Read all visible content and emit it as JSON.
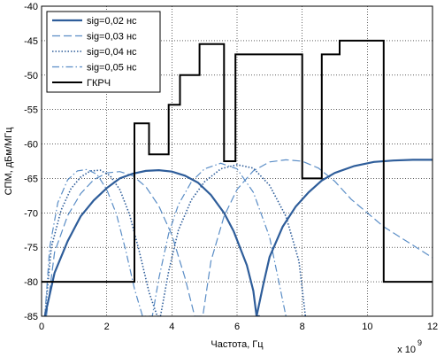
{
  "chart_data": {
    "type": "line",
    "xlabel": "Частота, Гц",
    "ylabel": "СПМ, дБм/МГц",
    "x_multiplier": "x 10",
    "x_multiplier_exp": "9",
    "xlim": [
      0,
      12
    ],
    "ylim": [
      -85,
      -40
    ],
    "x_ticks": [
      0,
      2,
      4,
      6,
      8,
      10,
      12
    ],
    "y_ticks": [
      -40,
      -45,
      -50,
      -55,
      -60,
      -65,
      -70,
      -75,
      -80,
      -85
    ],
    "grid": true,
    "legend_position": "top-left",
    "series": [
      {
        "name": "sig=0,02 нс",
        "style": "solid",
        "color": "#2e5d9a",
        "x": [
          0.1,
          0.4,
          0.8,
          1.2,
          1.6,
          2.0,
          2.4,
          2.8,
          3.2,
          3.6,
          4.0,
          4.4,
          4.8,
          5.2,
          5.6,
          5.9,
          6.3,
          6.5,
          6.6,
          6.7,
          6.6,
          6.8,
          7.0,
          7.4,
          7.8,
          8.2,
          8.6,
          9.0,
          9.6,
          10.2,
          10.8,
          11.4,
          12.0
        ],
        "y": [
          -85,
          -78.7,
          -74.1,
          -70.5,
          -68.2,
          -66.4,
          -65.0,
          -64.3,
          -63.9,
          -63.8,
          -64.0,
          -64.6,
          -65.6,
          -67.4,
          -70.0,
          -72.7,
          -77.6,
          -81.3,
          -85,
          -85,
          -85,
          -80.5,
          -76.4,
          -72.0,
          -69.1,
          -67.0,
          -65.3,
          -64.2,
          -63.2,
          -62.6,
          -62.4,
          -62.3,
          -62.3
        ]
      },
      {
        "name": "sig=0,03 нс",
        "style": "dashed",
        "color": "#5a8dc6",
        "x": [
          0.15,
          0.4,
          0.8,
          1.2,
          1.6,
          2.0,
          2.4,
          2.8,
          3.2,
          3.6,
          4.0,
          4.4,
          4.7,
          4.95,
          5.2,
          5.6,
          6.0,
          6.5,
          7.0,
          7.5,
          8.0,
          8.5,
          9.0,
          9.5,
          10.0,
          10.5,
          11.0,
          11.5,
          12.0
        ],
        "y": [
          -85,
          -75.7,
          -70.4,
          -67.2,
          -65.2,
          -64.2,
          -64.0,
          -64.6,
          -66.2,
          -69.0,
          -73.2,
          -79.4,
          -85,
          -85,
          -77.0,
          -70.5,
          -66.6,
          -63.9,
          -62.6,
          -62.3,
          -62.5,
          -63.5,
          -65.4,
          -68.0,
          -70.0,
          -72.0,
          -73.5,
          -75.0,
          -76.5
        ]
      },
      {
        "name": "sig=0,04 нс",
        "style": "dotted",
        "color": "#2e5d9a",
        "x": [
          0.1,
          0.3,
          0.6,
          0.9,
          1.2,
          1.5,
          1.8,
          2.1,
          2.4,
          2.7,
          3.0,
          3.3,
          3.55,
          3.65,
          3.9,
          4.2,
          4.6,
          5.0,
          5.5,
          6.0,
          6.5,
          7.0,
          7.5,
          7.9,
          8.1
        ],
        "y": [
          -85,
          -75.0,
          -69.6,
          -66.5,
          -64.8,
          -63.9,
          -63.8,
          -64.6,
          -66.6,
          -70.2,
          -75.6,
          -81.5,
          -85,
          -85,
          -78.5,
          -72.5,
          -68.1,
          -65.5,
          -63.6,
          -63.0,
          -63.5,
          -66.0,
          -70.5,
          -77.0,
          -85
        ]
      },
      {
        "name": "sig=0,05 нс",
        "style": "dashdot",
        "color": "#5a8dc6",
        "x": [
          0.1,
          0.25,
          0.5,
          0.8,
          1.1,
          1.4,
          1.7,
          2.0,
          2.3,
          2.6,
          2.85,
          3.1,
          3.3,
          3.4,
          3.6,
          3.9,
          4.2,
          4.6,
          5.0,
          5.5,
          6.0,
          6.5,
          7.0,
          7.5
        ],
        "y": [
          -85,
          -75.0,
          -68.5,
          -65.2,
          -63.9,
          -63.7,
          -64.4,
          -66.6,
          -70.2,
          -75.8,
          -81.0,
          -85,
          -85,
          -85,
          -79.5,
          -73.0,
          -68.8,
          -65.5,
          -63.6,
          -62.8,
          -63.6,
          -67.0,
          -73.5,
          -85
        ]
      },
      {
        "name": "ГКРЧ",
        "style": "step",
        "color": "#000000",
        "x": [
          0,
          2.85,
          2.85,
          3.3,
          3.3,
          3.9,
          3.9,
          4.25,
          4.25,
          4.85,
          4.85,
          5.6,
          5.6,
          5.95,
          5.95,
          8.0,
          8.0,
          8.6,
          8.6,
          9.15,
          9.15,
          10.5,
          10.5,
          12.0
        ],
        "y": [
          -80,
          -80,
          -57,
          -57,
          -61.5,
          -61.5,
          -54.3,
          -54.3,
          -50,
          -50,
          -45.5,
          -45.5,
          -62.5,
          -62.5,
          -47,
          -47,
          -65,
          -65,
          -47,
          -47,
          -45,
          -45,
          -80,
          -80
        ]
      }
    ]
  }
}
